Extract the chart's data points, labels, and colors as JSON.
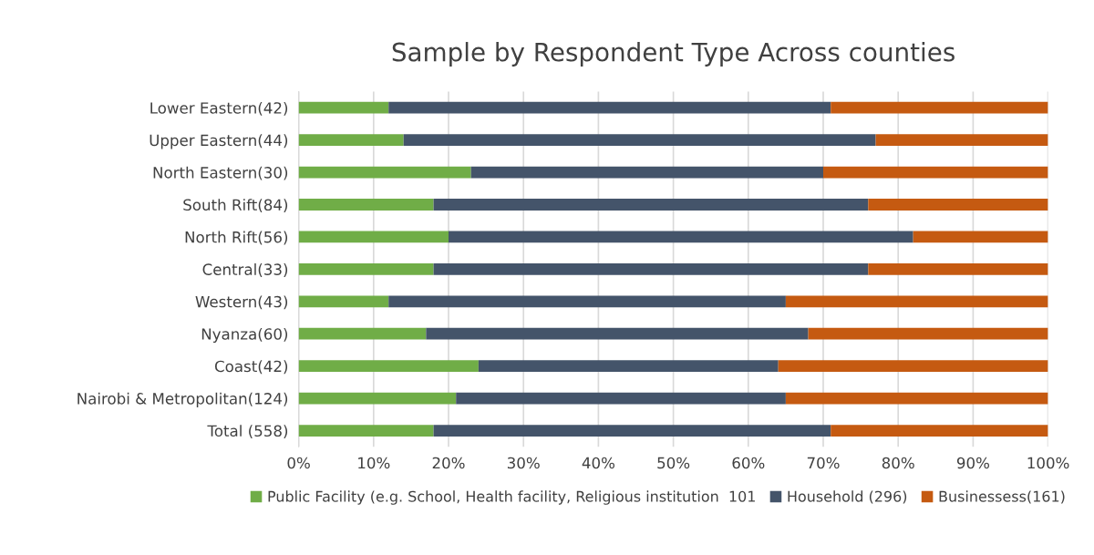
{
  "chart_data": {
    "type": "bar",
    "orientation": "horizontal",
    "stacked": true,
    "title": "Sample by Respondent Type Across counties",
    "categories": [
      "Lower Eastern(42)",
      "Upper Eastern(44)",
      "North Eastern(30)",
      "South Rift(84)",
      "North Rift(56)",
      "Central(33)",
      "Western(43)",
      "Nyanza(60)",
      "Coast(42)",
      "Nairobi & Metropolitan(124)",
      "Total (558)"
    ],
    "series": [
      {
        "name": "Public Facility (e.g. School, Health facility, Religious institution  101",
        "color": "#70ad47",
        "values": [
          12,
          14,
          23,
          18,
          20,
          18,
          12,
          17,
          24,
          21,
          18
        ]
      },
      {
        "name": "Household (296)",
        "color": "#44546a",
        "values": [
          59,
          63,
          47,
          58,
          62,
          58,
          53,
          51,
          40,
          44,
          53
        ]
      },
      {
        "name": "Businessess(161)",
        "color": "#c55a11",
        "values": [
          29,
          23,
          30,
          24,
          18,
          24,
          35,
          32,
          36,
          35,
          29
        ]
      }
    ],
    "xlim": [
      0,
      100
    ],
    "xticks": [
      {
        "value": 0,
        "label": "0%"
      },
      {
        "value": 10,
        "label": "10%"
      },
      {
        "value": 20,
        "label": "20%"
      },
      {
        "value": 30,
        "label": "30%"
      },
      {
        "value": 40,
        "label": "40%"
      },
      {
        "value": 50,
        "label": "50%"
      },
      {
        "value": 60,
        "label": "60%"
      },
      {
        "value": 70,
        "label": "70%"
      },
      {
        "value": 80,
        "label": "80%"
      },
      {
        "value": 90,
        "label": "90%"
      },
      {
        "value": 100,
        "label": "100%"
      }
    ],
    "grid": "x",
    "legend": "bottom"
  }
}
